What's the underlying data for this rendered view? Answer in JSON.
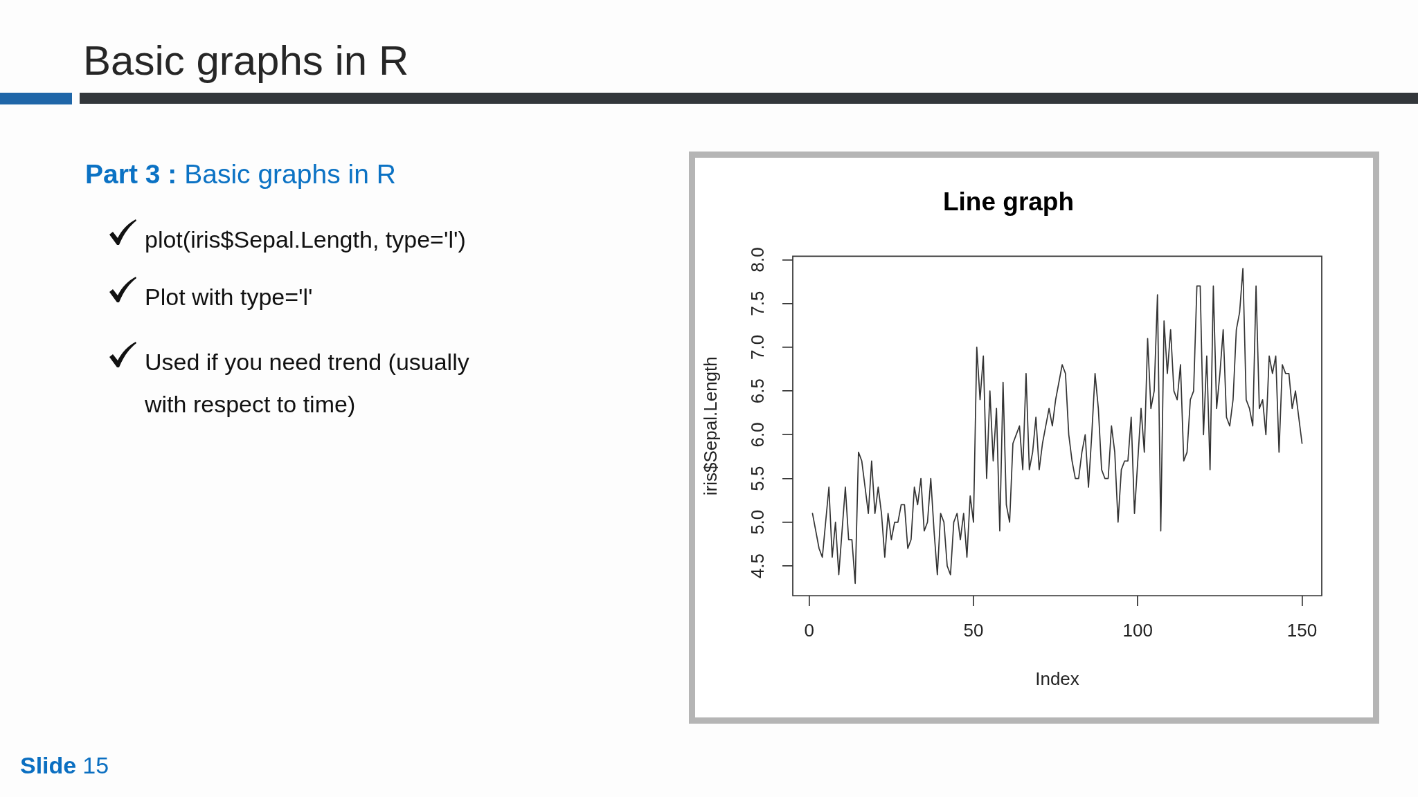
{
  "chart_data": {
    "type": "line",
    "title": "Line graph",
    "xlabel": "Index",
    "ylabel": "iris$Sepal.Length",
    "x": [
      1,
      2,
      3,
      4,
      5,
      6,
      7,
      8,
      9,
      10,
      11,
      12,
      13,
      14,
      15,
      16,
      17,
      18,
      19,
      20,
      21,
      22,
      23,
      24,
      25,
      26,
      27,
      28,
      29,
      30,
      31,
      32,
      33,
      34,
      35,
      36,
      37,
      38,
      39,
      40,
      41,
      42,
      43,
      44,
      45,
      46,
      47,
      48,
      49,
      50,
      51,
      52,
      53,
      54,
      55,
      56,
      57,
      58,
      59,
      60,
      61,
      62,
      63,
      64,
      65,
      66,
      67,
      68,
      69,
      70,
      71,
      72,
      73,
      74,
      75,
      76,
      77,
      78,
      79,
      80,
      81,
      82,
      83,
      84,
      85,
      86,
      87,
      88,
      89,
      90,
      91,
      92,
      93,
      94,
      95,
      96,
      97,
      98,
      99,
      100,
      101,
      102,
      103,
      104,
      105,
      106,
      107,
      108,
      109,
      110,
      111,
      112,
      113,
      114,
      115,
      116,
      117,
      118,
      119,
      120,
      121,
      122,
      123,
      124,
      125,
      126,
      127,
      128,
      129,
      130,
      131,
      132,
      133,
      134,
      135,
      136,
      137,
      138,
      139,
      140,
      141,
      142,
      143,
      144,
      145,
      146,
      147,
      148,
      149,
      150
    ],
    "values": [
      5.1,
      4.9,
      4.7,
      4.6,
      5.0,
      5.4,
      4.6,
      5.0,
      4.4,
      4.9,
      5.4,
      4.8,
      4.8,
      4.3,
      5.8,
      5.7,
      5.4,
      5.1,
      5.7,
      5.1,
      5.4,
      5.1,
      4.6,
      5.1,
      4.8,
      5.0,
      5.0,
      5.2,
      5.2,
      4.7,
      4.8,
      5.4,
      5.2,
      5.5,
      4.9,
      5.0,
      5.5,
      4.9,
      4.4,
      5.1,
      5.0,
      4.5,
      4.4,
      5.0,
      5.1,
      4.8,
      5.1,
      4.6,
      5.3,
      5.0,
      7.0,
      6.4,
      6.9,
      5.5,
      6.5,
      5.7,
      6.3,
      4.9,
      6.6,
      5.2,
      5.0,
      5.9,
      6.0,
      6.1,
      5.6,
      6.7,
      5.6,
      5.8,
      6.2,
      5.6,
      5.9,
      6.1,
      6.3,
      6.1,
      6.4,
      6.6,
      6.8,
      6.7,
      6.0,
      5.7,
      5.5,
      5.5,
      5.8,
      6.0,
      5.4,
      6.0,
      6.7,
      6.3,
      5.6,
      5.5,
      5.5,
      6.1,
      5.8,
      5.0,
      5.6,
      5.7,
      5.7,
      6.2,
      5.1,
      5.7,
      6.3,
      5.8,
      7.1,
      6.3,
      6.5,
      7.6,
      4.9,
      7.3,
      6.7,
      7.2,
      6.5,
      6.4,
      6.8,
      5.7,
      5.8,
      6.4,
      6.5,
      7.7,
      7.7,
      6.0,
      6.9,
      5.6,
      7.7,
      6.3,
      6.7,
      7.2,
      6.2,
      6.1,
      6.4,
      7.2,
      7.4,
      7.9,
      6.4,
      6.3,
      6.1,
      7.7,
      6.3,
      6.4,
      6.0,
      6.9,
      6.7,
      6.9,
      5.8,
      6.8,
      6.7,
      6.7,
      6.3,
      6.5,
      6.2,
      5.9
    ],
    "color": "#333333",
    "xlim": [
      -5,
      156
    ],
    "ylim": [
      4.16,
      8.04
    ],
    "xticks": [
      0,
      50,
      100,
      150
    ],
    "yticks": [
      4.5,
      {
        "value": 5,
        "label": "5.0"
      },
      5.5,
      {
        "value": 6,
        "label": "6.0"
      },
      6.5,
      {
        "value": 7,
        "label": "7.0"
      },
      7.5,
      {
        "value": 8,
        "label": "8.0"
      }
    ],
    "grid": false,
    "legend": false,
    "marker": "none",
    "line_style": "solid",
    "annotations": [
      "Basic graphs in R",
      "Part 3 :",
      "Basic graphs in R",
      "plot(iris$Sepal.Length, type='l')",
      "Plot with type='l'",
      "Used if you need trend (usually with respect to time)",
      "Slide",
      "15"
    ]
  }
}
